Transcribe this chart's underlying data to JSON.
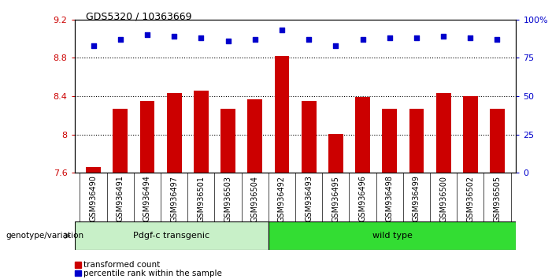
{
  "title": "GDS5320 / 10363669",
  "categories": [
    "GSM936490",
    "GSM936491",
    "GSM936494",
    "GSM936497",
    "GSM936501",
    "GSM936503",
    "GSM936504",
    "GSM936492",
    "GSM936493",
    "GSM936495",
    "GSM936496",
    "GSM936498",
    "GSM936499",
    "GSM936500",
    "GSM936502",
    "GSM936505"
  ],
  "bar_values": [
    7.66,
    8.27,
    8.35,
    8.43,
    8.46,
    8.27,
    8.37,
    8.82,
    8.35,
    8.01,
    8.39,
    8.27,
    8.27,
    8.43,
    8.4,
    8.27
  ],
  "percentile_values": [
    83,
    87,
    90,
    89,
    88,
    86,
    87,
    93,
    87,
    83,
    87,
    88,
    88,
    89,
    88,
    87
  ],
  "group1_label": "Pdgf-c transgenic",
  "group2_label": "wild type",
  "group1_count": 7,
  "group2_count": 9,
  "ylim_left": [
    7.6,
    9.2
  ],
  "ylim_right": [
    0,
    100
  ],
  "yticks_left": [
    7.6,
    8.0,
    8.4,
    8.8,
    9.2
  ],
  "ytick_labels_left": [
    "7.6",
    "8",
    "8.4",
    "8.8",
    "9.2"
  ],
  "yticks_right": [
    0,
    25,
    50,
    75,
    100
  ],
  "ytick_labels_right": [
    "0",
    "25",
    "50",
    "75",
    "100%"
  ],
  "bar_color": "#cc0000",
  "dot_color": "#0000cc",
  "group1_color": "#c8f0c8",
  "group2_color": "#33dd33",
  "bar_base": 7.6,
  "genotype_label": "genotype/variation",
  "legend_bar_label": "transformed count",
  "legend_dot_label": "percentile rank within the sample",
  "grid_color": "#000000",
  "background_color": "#ffffff",
  "xtick_bg_color": "#c8c8c8"
}
